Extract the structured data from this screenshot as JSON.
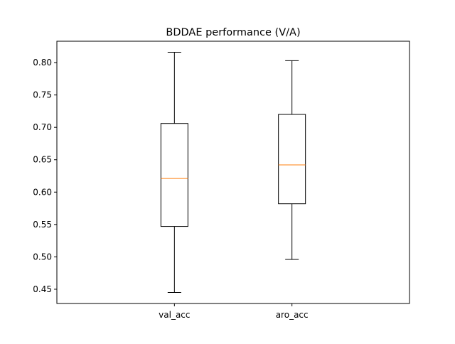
{
  "chart_data": {
    "type": "box",
    "title": "BDDAE performance (V/A)",
    "xlabel": "",
    "ylabel": "",
    "categories": [
      "val_acc",
      "aro_acc"
    ],
    "boxes": [
      {
        "label": "val_acc",
        "whisker_low": 0.445,
        "q1": 0.547,
        "median": 0.621,
        "q3": 0.706,
        "whisker_high": 0.816
      },
      {
        "label": "aro_acc",
        "whisker_low": 0.496,
        "q1": 0.582,
        "median": 0.642,
        "q3": 0.72,
        "whisker_high": 0.803
      }
    ],
    "ylim": [
      0.428,
      0.833
    ],
    "yticks": [
      0.45,
      0.5,
      0.55,
      0.6,
      0.65,
      0.7,
      0.75,
      0.8
    ],
    "ytick_labels": [
      "0.45",
      "0.50",
      "0.55",
      "0.60",
      "0.65",
      "0.70",
      "0.75",
      "0.80"
    ],
    "grid": false,
    "colors": {
      "box": "#000000",
      "median": "#ff7f0e",
      "axes": "#000000",
      "background": "#ffffff"
    }
  }
}
